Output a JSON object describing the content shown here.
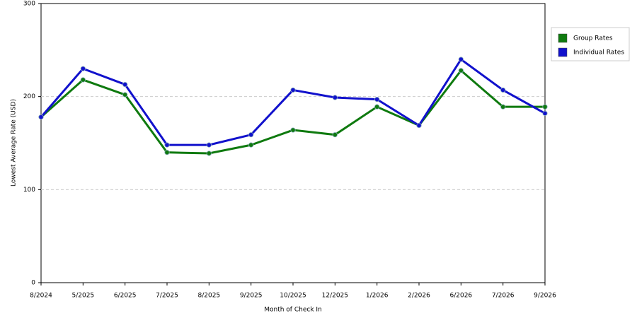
{
  "chart_data": {
    "type": "line",
    "x_label": "Month of Check In",
    "y_label": "Lowest Average Rate (USD)",
    "categories": [
      "8/2024",
      "5/2025",
      "6/2025",
      "7/2025",
      "8/2025",
      "9/2025",
      "10/2025",
      "12/2025",
      "1/2026",
      "2/2026",
      "6/2026",
      "7/2026",
      "9/2026"
    ],
    "series": [
      {
        "name": "Group Rates",
        "color": "#0f7a0f",
        "values": [
          178,
          218,
          202,
          140,
          139,
          148,
          164,
          159,
          189,
          169,
          228,
          189,
          189
        ]
      },
      {
        "name": "Individual Rates",
        "color": "#1111cc",
        "values": [
          178,
          230,
          213,
          148,
          148,
          159,
          207,
          199,
          197,
          169,
          240,
          207,
          182
        ]
      }
    ],
    "ylim": [
      0,
      300
    ],
    "yticks": [
      0,
      100,
      200,
      300
    ],
    "grid": true,
    "legend": "right"
  }
}
